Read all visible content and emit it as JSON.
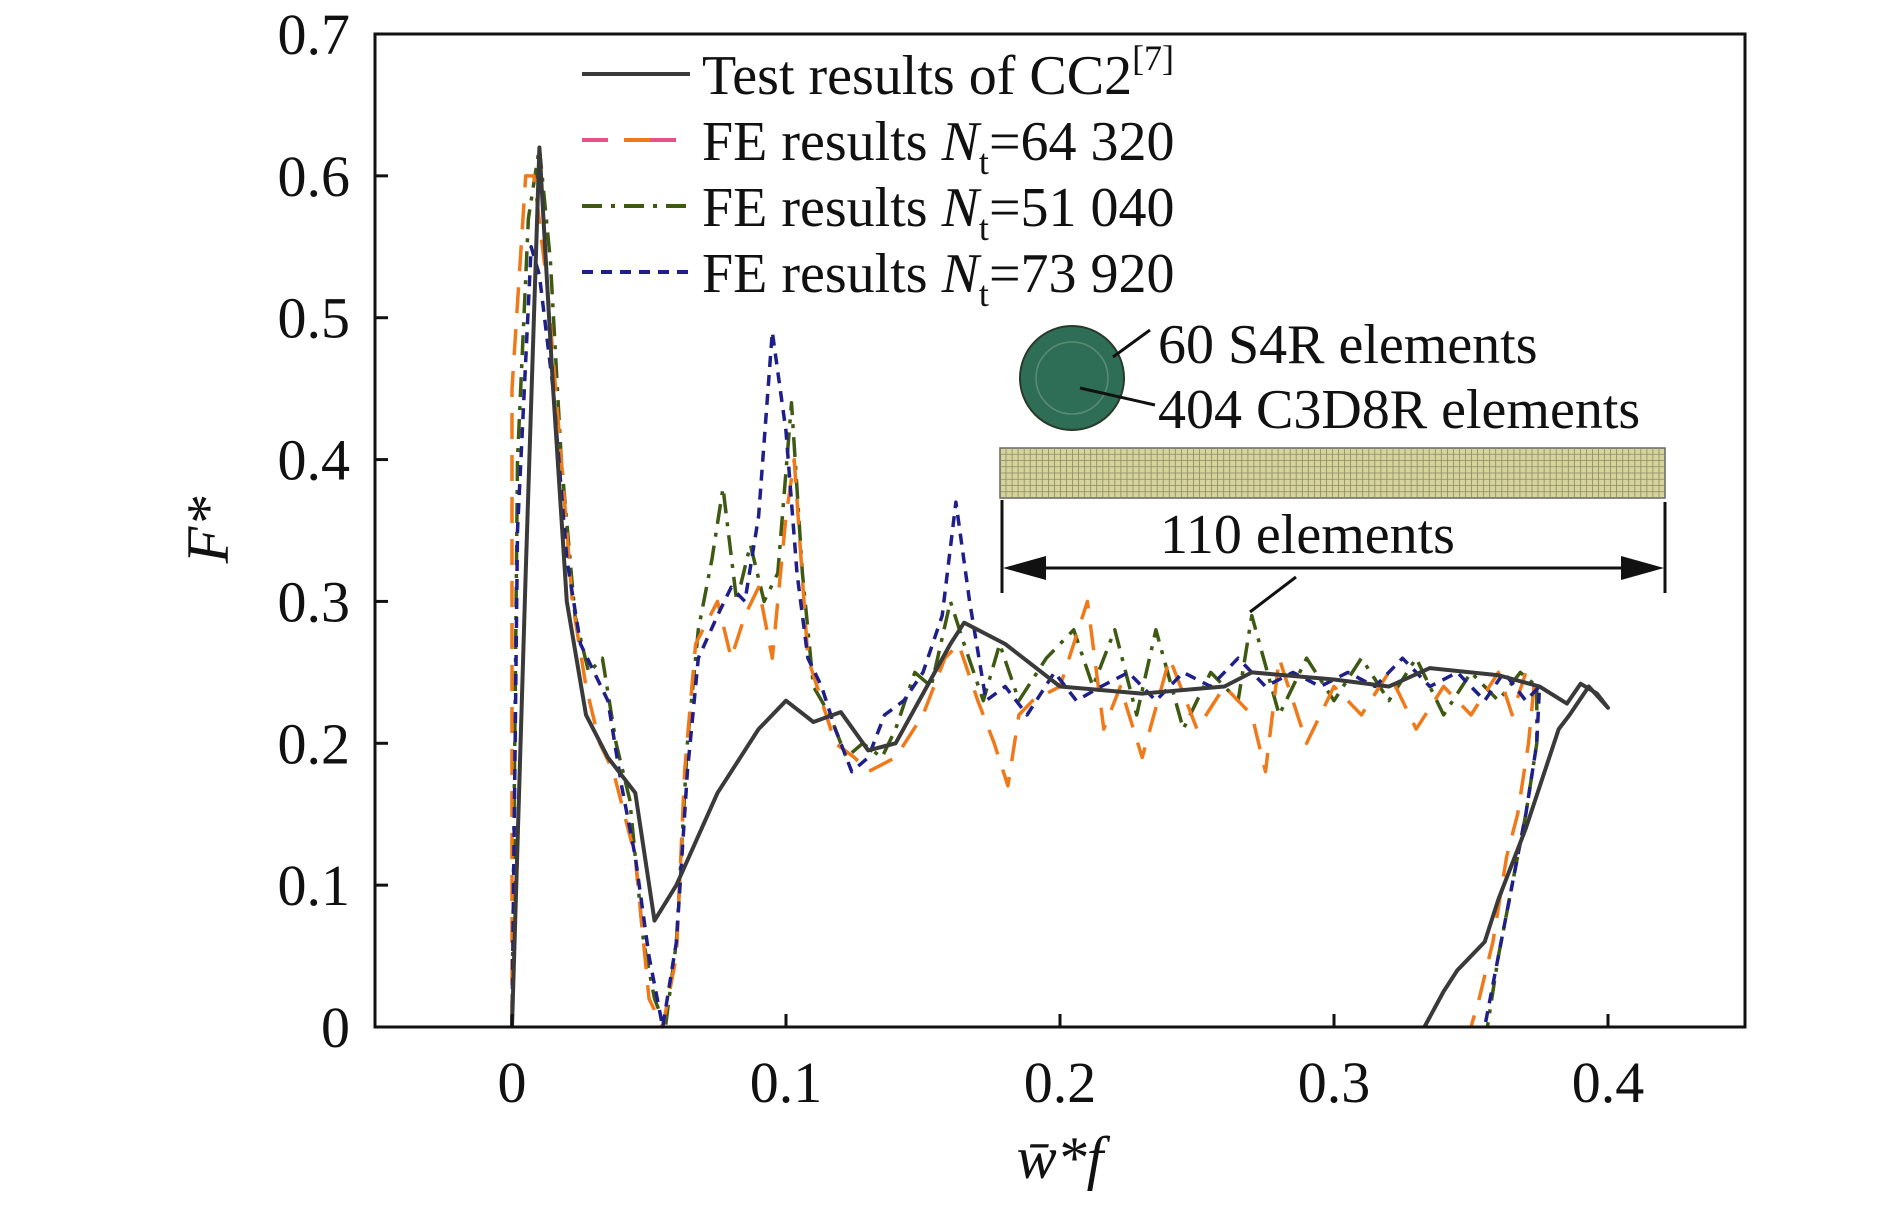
{
  "chart_data": {
    "type": "line",
    "title": "",
    "xlabel": "w̄*f",
    "ylabel": "F*",
    "xlim": [
      -0.05,
      0.45
    ],
    "ylim": [
      0,
      0.7
    ],
    "x_ticks": [
      "0",
      "0.1",
      "0.2",
      "0.3",
      "0.4"
    ],
    "y_ticks": [
      "0",
      "0.1",
      "0.2",
      "0.3",
      "0.4",
      "0.5",
      "0.6",
      "0.7"
    ],
    "grid": false,
    "legend_position": "top-center",
    "series": [
      {
        "name": "Test results of CC2[7]",
        "legend": {
          "text": "Test results of CC2",
          "sup": "[7]"
        },
        "color": "#3a3a3a",
        "dash": "solid",
        "points": [
          [
            0.0,
            0.0
          ],
          [
            0.005,
            0.32
          ],
          [
            0.01,
            0.62
          ],
          [
            0.015,
            0.45
          ],
          [
            0.02,
            0.3
          ],
          [
            0.027,
            0.22
          ],
          [
            0.035,
            0.19
          ],
          [
            0.045,
            0.165
          ],
          [
            0.052,
            0.075
          ],
          [
            0.06,
            0.1
          ],
          [
            0.075,
            0.165
          ],
          [
            0.09,
            0.21
          ],
          [
            0.1,
            0.23
          ],
          [
            0.11,
            0.215
          ],
          [
            0.12,
            0.222
          ],
          [
            0.13,
            0.195
          ],
          [
            0.14,
            0.2
          ],
          [
            0.15,
            0.235
          ],
          [
            0.16,
            0.27
          ],
          [
            0.165,
            0.285
          ],
          [
            0.18,
            0.27
          ],
          [
            0.2,
            0.24
          ],
          [
            0.23,
            0.235
          ],
          [
            0.26,
            0.24
          ],
          [
            0.27,
            0.25
          ],
          [
            0.3,
            0.245
          ],
          [
            0.32,
            0.24
          ],
          [
            0.335,
            0.253
          ],
          [
            0.36,
            0.248
          ],
          [
            0.375,
            0.24
          ],
          [
            0.385,
            0.228
          ],
          [
            0.39,
            0.242
          ],
          [
            0.396,
            0.235
          ],
          [
            0.4,
            0.225
          ],
          [
            0.393,
            0.24
          ],
          [
            0.386,
            0.22
          ],
          [
            0.382,
            0.21
          ],
          [
            0.37,
            0.14
          ],
          [
            0.36,
            0.09
          ],
          [
            0.355,
            0.06
          ],
          [
            0.345,
            0.04
          ],
          [
            0.34,
            0.025
          ],
          [
            0.333,
            0.0
          ]
        ]
      },
      {
        "name": "FE results Nt=64 320",
        "legend": {
          "prefix": "FE results ",
          "n": "N",
          "sub": "t",
          "suffix": "=64 320"
        },
        "color": "#f07a1a",
        "alt_color": "#e8508a",
        "dash": "long",
        "points": [
          [
            0.0,
            0.0
          ],
          [
            0.0,
            0.45
          ],
          [
            0.005,
            0.6
          ],
          [
            0.008,
            0.6
          ],
          [
            0.013,
            0.52
          ],
          [
            0.018,
            0.4
          ],
          [
            0.022,
            0.3
          ],
          [
            0.027,
            0.24
          ],
          [
            0.032,
            0.2
          ],
          [
            0.037,
            0.18
          ],
          [
            0.045,
            0.12
          ],
          [
            0.05,
            0.02
          ],
          [
            0.055,
            0.0
          ],
          [
            0.06,
            0.05
          ],
          [
            0.063,
            0.18
          ],
          [
            0.067,
            0.27
          ],
          [
            0.075,
            0.3
          ],
          [
            0.08,
            0.26
          ],
          [
            0.085,
            0.29
          ],
          [
            0.09,
            0.31
          ],
          [
            0.095,
            0.26
          ],
          [
            0.1,
            0.36
          ],
          [
            0.103,
            0.4
          ],
          [
            0.108,
            0.26
          ],
          [
            0.113,
            0.23
          ],
          [
            0.118,
            0.2
          ],
          [
            0.125,
            0.19
          ],
          [
            0.13,
            0.18
          ],
          [
            0.14,
            0.19
          ],
          [
            0.15,
            0.22
          ],
          [
            0.158,
            0.26
          ],
          [
            0.163,
            0.27
          ],
          [
            0.17,
            0.23
          ],
          [
            0.176,
            0.2
          ],
          [
            0.181,
            0.17
          ],
          [
            0.185,
            0.22
          ],
          [
            0.19,
            0.23
          ],
          [
            0.2,
            0.24
          ],
          [
            0.21,
            0.3
          ],
          [
            0.216,
            0.21
          ],
          [
            0.222,
            0.24
          ],
          [
            0.23,
            0.19
          ],
          [
            0.24,
            0.26
          ],
          [
            0.25,
            0.21
          ],
          [
            0.26,
            0.24
          ],
          [
            0.27,
            0.22
          ],
          [
            0.275,
            0.18
          ],
          [
            0.28,
            0.26
          ],
          [
            0.29,
            0.2
          ],
          [
            0.3,
            0.24
          ],
          [
            0.31,
            0.22
          ],
          [
            0.32,
            0.25
          ],
          [
            0.33,
            0.21
          ],
          [
            0.34,
            0.24
          ],
          [
            0.35,
            0.22
          ],
          [
            0.36,
            0.25
          ],
          [
            0.365,
            0.22
          ],
          [
            0.37,
            0.25
          ],
          [
            0.373,
            0.24
          ],
          [
            0.371,
            0.2
          ],
          [
            0.367,
            0.15
          ],
          [
            0.363,
            0.12
          ],
          [
            0.358,
            0.06
          ],
          [
            0.353,
            0.02
          ],
          [
            0.35,
            0.0
          ]
        ]
      },
      {
        "name": "FE results Nt=51 040",
        "legend": {
          "prefix": "FE results ",
          "n": "N",
          "sub": "t",
          "suffix": "=51 040"
        },
        "color": "#3e5a12",
        "dash": "dash-dot",
        "points": [
          [
            0.0,
            0.0
          ],
          [
            0.002,
            0.4
          ],
          [
            0.006,
            0.57
          ],
          [
            0.01,
            0.62
          ],
          [
            0.014,
            0.54
          ],
          [
            0.018,
            0.4
          ],
          [
            0.023,
            0.29
          ],
          [
            0.028,
            0.25
          ],
          [
            0.033,
            0.26
          ],
          [
            0.038,
            0.2
          ],
          [
            0.043,
            0.16
          ],
          [
            0.048,
            0.06
          ],
          [
            0.052,
            0.02
          ],
          [
            0.056,
            0.0
          ],
          [
            0.06,
            0.06
          ],
          [
            0.064,
            0.2
          ],
          [
            0.068,
            0.28
          ],
          [
            0.073,
            0.33
          ],
          [
            0.077,
            0.38
          ],
          [
            0.082,
            0.3
          ],
          [
            0.087,
            0.34
          ],
          [
            0.092,
            0.3
          ],
          [
            0.097,
            0.32
          ],
          [
            0.102,
            0.44
          ],
          [
            0.106,
            0.32
          ],
          [
            0.11,
            0.24
          ],
          [
            0.116,
            0.22
          ],
          [
            0.122,
            0.19
          ],
          [
            0.128,
            0.2
          ],
          [
            0.135,
            0.19
          ],
          [
            0.14,
            0.21
          ],
          [
            0.147,
            0.25
          ],
          [
            0.153,
            0.24
          ],
          [
            0.16,
            0.3
          ],
          [
            0.165,
            0.27
          ],
          [
            0.172,
            0.23
          ],
          [
            0.178,
            0.27
          ],
          [
            0.185,
            0.23
          ],
          [
            0.195,
            0.26
          ],
          [
            0.205,
            0.28
          ],
          [
            0.212,
            0.24
          ],
          [
            0.22,
            0.28
          ],
          [
            0.228,
            0.22
          ],
          [
            0.235,
            0.28
          ],
          [
            0.245,
            0.21
          ],
          [
            0.255,
            0.25
          ],
          [
            0.265,
            0.23
          ],
          [
            0.27,
            0.29
          ],
          [
            0.28,
            0.22
          ],
          [
            0.29,
            0.26
          ],
          [
            0.3,
            0.23
          ],
          [
            0.31,
            0.26
          ],
          [
            0.32,
            0.23
          ],
          [
            0.33,
            0.26
          ],
          [
            0.34,
            0.22
          ],
          [
            0.35,
            0.25
          ],
          [
            0.36,
            0.23
          ],
          [
            0.368,
            0.25
          ],
          [
            0.374,
            0.24
          ],
          [
            0.374,
            0.2
          ],
          [
            0.37,
            0.15
          ],
          [
            0.365,
            0.1
          ],
          [
            0.36,
            0.05
          ],
          [
            0.356,
            0.0
          ]
        ]
      },
      {
        "name": "FE results Nt=73 920",
        "legend": {
          "prefix": "FE results ",
          "n": "N",
          "sub": "t",
          "suffix": "=73 920"
        },
        "color": "#1f1f8c",
        "dash": "short",
        "points": [
          [
            0.0,
            0.0
          ],
          [
            0.002,
            0.35
          ],
          [
            0.007,
            0.55
          ],
          [
            0.01,
            0.53
          ],
          [
            0.015,
            0.45
          ],
          [
            0.02,
            0.33
          ],
          [
            0.025,
            0.27
          ],
          [
            0.03,
            0.25
          ],
          [
            0.035,
            0.23
          ],
          [
            0.04,
            0.17
          ],
          [
            0.045,
            0.12
          ],
          [
            0.05,
            0.05
          ],
          [
            0.055,
            0.0
          ],
          [
            0.06,
            0.06
          ],
          [
            0.064,
            0.18
          ],
          [
            0.068,
            0.26
          ],
          [
            0.075,
            0.29
          ],
          [
            0.08,
            0.31
          ],
          [
            0.085,
            0.3
          ],
          [
            0.09,
            0.36
          ],
          [
            0.095,
            0.49
          ],
          [
            0.1,
            0.42
          ],
          [
            0.104,
            0.32
          ],
          [
            0.108,
            0.26
          ],
          [
            0.113,
            0.24
          ],
          [
            0.118,
            0.21
          ],
          [
            0.124,
            0.18
          ],
          [
            0.13,
            0.19
          ],
          [
            0.136,
            0.22
          ],
          [
            0.143,
            0.23
          ],
          [
            0.15,
            0.25
          ],
          [
            0.157,
            0.29
          ],
          [
            0.162,
            0.37
          ],
          [
            0.167,
            0.3
          ],
          [
            0.173,
            0.23
          ],
          [
            0.18,
            0.24
          ],
          [
            0.188,
            0.22
          ],
          [
            0.198,
            0.25
          ],
          [
            0.206,
            0.23
          ],
          [
            0.215,
            0.24
          ],
          [
            0.225,
            0.25
          ],
          [
            0.235,
            0.23
          ],
          [
            0.245,
            0.25
          ],
          [
            0.255,
            0.24
          ],
          [
            0.265,
            0.26
          ],
          [
            0.275,
            0.24
          ],
          [
            0.285,
            0.25
          ],
          [
            0.295,
            0.24
          ],
          [
            0.305,
            0.25
          ],
          [
            0.315,
            0.24
          ],
          [
            0.325,
            0.26
          ],
          [
            0.335,
            0.24
          ],
          [
            0.345,
            0.25
          ],
          [
            0.355,
            0.23
          ],
          [
            0.362,
            0.25
          ],
          [
            0.37,
            0.23
          ],
          [
            0.375,
            0.24
          ],
          [
            0.374,
            0.2
          ],
          [
            0.37,
            0.15
          ],
          [
            0.365,
            0.1
          ],
          [
            0.36,
            0.05
          ],
          [
            0.355,
            0.0
          ]
        ]
      }
    ]
  },
  "annotations": {
    "s4r_label": "60 S4R elements",
    "c3d8r_label": "404 C3D8R elements",
    "span_label": "110 elements",
    "cross_section_color": "#2f6e56",
    "mesh_color": "#d6d49a"
  }
}
